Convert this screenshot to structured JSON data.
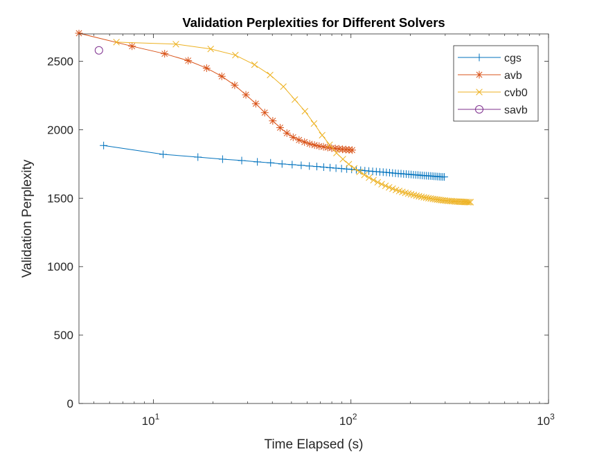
{
  "chart_data": {
    "type": "line",
    "title": "Validation Perplexities for Different Solvers",
    "xlabel": "Time Elapsed (s)",
    "ylabel": "Validation Perplexity",
    "xscale": "log",
    "xlim": [
      4.2,
      1000
    ],
    "ylim": [
      0,
      2700
    ],
    "xticks": [
      {
        "value": 10,
        "base": "10",
        "exp": "1"
      },
      {
        "value": 100,
        "base": "10",
        "exp": "2"
      },
      {
        "value": 1000,
        "base": "10",
        "exp": "3"
      }
    ],
    "yticks": [
      0,
      500,
      1000,
      1500,
      2000,
      2500
    ],
    "legend_position": "top-right",
    "series": [
      {
        "name": "cgs",
        "color": "#0072BD",
        "marker": "plus",
        "points": [
          [
            5.6,
            1885
          ],
          [
            11.2,
            1820
          ],
          [
            16.8,
            1800
          ],
          [
            22.4,
            1785
          ],
          [
            28,
            1775
          ],
          [
            33.6,
            1765
          ],
          [
            39.2,
            1758
          ],
          [
            44.8,
            1750
          ],
          [
            50.4,
            1745
          ],
          [
            56,
            1740
          ],
          [
            61.6,
            1735
          ],
          [
            67.2,
            1731
          ],
          [
            72.8,
            1727
          ],
          [
            78.4,
            1723
          ],
          [
            84,
            1719
          ],
          [
            89.6,
            1716
          ],
          [
            95.2,
            1713
          ],
          [
            100.8,
            1710
          ],
          [
            106.4,
            1707
          ],
          [
            112,
            1704
          ],
          [
            117.6,
            1701
          ],
          [
            123.2,
            1698
          ],
          [
            128.8,
            1696
          ],
          [
            134.4,
            1694
          ],
          [
            140,
            1692
          ],
          [
            145.6,
            1690
          ],
          [
            151.2,
            1688
          ],
          [
            156.8,
            1686
          ],
          [
            162.4,
            1684
          ],
          [
            168,
            1682
          ],
          [
            173.6,
            1680
          ],
          [
            179.2,
            1679
          ],
          [
            184.8,
            1677
          ],
          [
            190.4,
            1676
          ],
          [
            196,
            1674
          ],
          [
            201.6,
            1673
          ],
          [
            207.2,
            1671
          ],
          [
            212.8,
            1670
          ],
          [
            218.4,
            1669
          ],
          [
            224,
            1667
          ],
          [
            229.6,
            1666
          ],
          [
            235.2,
            1665
          ],
          [
            240.8,
            1664
          ],
          [
            246.4,
            1663
          ],
          [
            252,
            1662
          ],
          [
            257.6,
            1661
          ],
          [
            263.2,
            1660
          ],
          [
            268.8,
            1659
          ],
          [
            274.4,
            1658
          ],
          [
            280,
            1657
          ],
          [
            285.6,
            1656
          ],
          [
            291.2,
            1655
          ],
          [
            296.8,
            1655
          ]
        ]
      },
      {
        "name": "avb",
        "color": "#D95319",
        "marker": "star",
        "points": [
          [
            4.2,
            2705
          ],
          [
            7.8,
            2610
          ],
          [
            11.4,
            2555
          ],
          [
            15,
            2505
          ],
          [
            18.6,
            2450
          ],
          [
            22.2,
            2390
          ],
          [
            25.8,
            2325
          ],
          [
            29.4,
            2255
          ],
          [
            33,
            2190
          ],
          [
            36.6,
            2125
          ],
          [
            40.2,
            2065
          ],
          [
            43.8,
            2015
          ],
          [
            47.4,
            1975
          ],
          [
            51,
            1945
          ],
          [
            54.6,
            1925
          ],
          [
            58.2,
            1910
          ],
          [
            61.8,
            1897
          ],
          [
            65.4,
            1888
          ],
          [
            69,
            1880
          ],
          [
            72.6,
            1875
          ],
          [
            76.2,
            1870
          ],
          [
            79.8,
            1866
          ],
          [
            83.4,
            1863
          ],
          [
            87,
            1860
          ],
          [
            90.6,
            1857
          ],
          [
            94.2,
            1855
          ],
          [
            97.8,
            1853
          ],
          [
            101.4,
            1851
          ]
        ]
      },
      {
        "name": "cvb0",
        "color": "#EDB120",
        "marker": "x",
        "points": [
          [
            6.5,
            2640
          ],
          [
            13,
            2625
          ],
          [
            19.5,
            2590
          ],
          [
            26,
            2545
          ],
          [
            32.5,
            2475
          ],
          [
            39,
            2400
          ],
          [
            45.5,
            2315
          ],
          [
            52,
            2220
          ],
          [
            58.5,
            2135
          ],
          [
            65,
            2045
          ],
          [
            71.5,
            1960
          ],
          [
            78,
            1890
          ],
          [
            84.5,
            1830
          ],
          [
            91,
            1785
          ],
          [
            97.5,
            1748
          ],
          [
            104,
            1718
          ],
          [
            110.5,
            1692
          ],
          [
            117,
            1670
          ],
          [
            123.5,
            1650
          ],
          [
            130,
            1632
          ],
          [
            136.5,
            1616
          ],
          [
            143,
            1602
          ],
          [
            149.5,
            1590
          ],
          [
            156,
            1579
          ],
          [
            162.5,
            1569
          ],
          [
            169,
            1560
          ],
          [
            175.5,
            1552
          ],
          [
            182,
            1545
          ],
          [
            188.5,
            1539
          ],
          [
            195,
            1533
          ],
          [
            201.5,
            1528
          ],
          [
            208,
            1523
          ],
          [
            214.5,
            1518
          ],
          [
            221,
            1514
          ],
          [
            227.5,
            1510
          ],
          [
            234,
            1506
          ],
          [
            240.5,
            1503
          ],
          [
            247,
            1500
          ],
          [
            253.5,
            1497
          ],
          [
            260,
            1494
          ],
          [
            266.5,
            1492
          ],
          [
            273,
            1490
          ],
          [
            279.5,
            1488
          ],
          [
            286,
            1486
          ],
          [
            292.5,
            1484
          ],
          [
            299,
            1483
          ],
          [
            305.5,
            1481
          ],
          [
            312,
            1480
          ],
          [
            318.5,
            1479
          ],
          [
            325,
            1478
          ],
          [
            331.5,
            1477
          ],
          [
            338,
            1476
          ],
          [
            344.5,
            1475
          ],
          [
            351,
            1474
          ],
          [
            357.5,
            1474
          ],
          [
            364,
            1473
          ],
          [
            370.5,
            1473
          ],
          [
            377,
            1472
          ],
          [
            383.5,
            1472
          ],
          [
            390,
            1471
          ],
          [
            396.5,
            1471
          ],
          [
            403,
            1471
          ]
        ]
      },
      {
        "name": "savb",
        "color": "#7E2F8E",
        "marker": "circle",
        "points": [
          [
            5.3,
            2580
          ]
        ]
      }
    ]
  }
}
